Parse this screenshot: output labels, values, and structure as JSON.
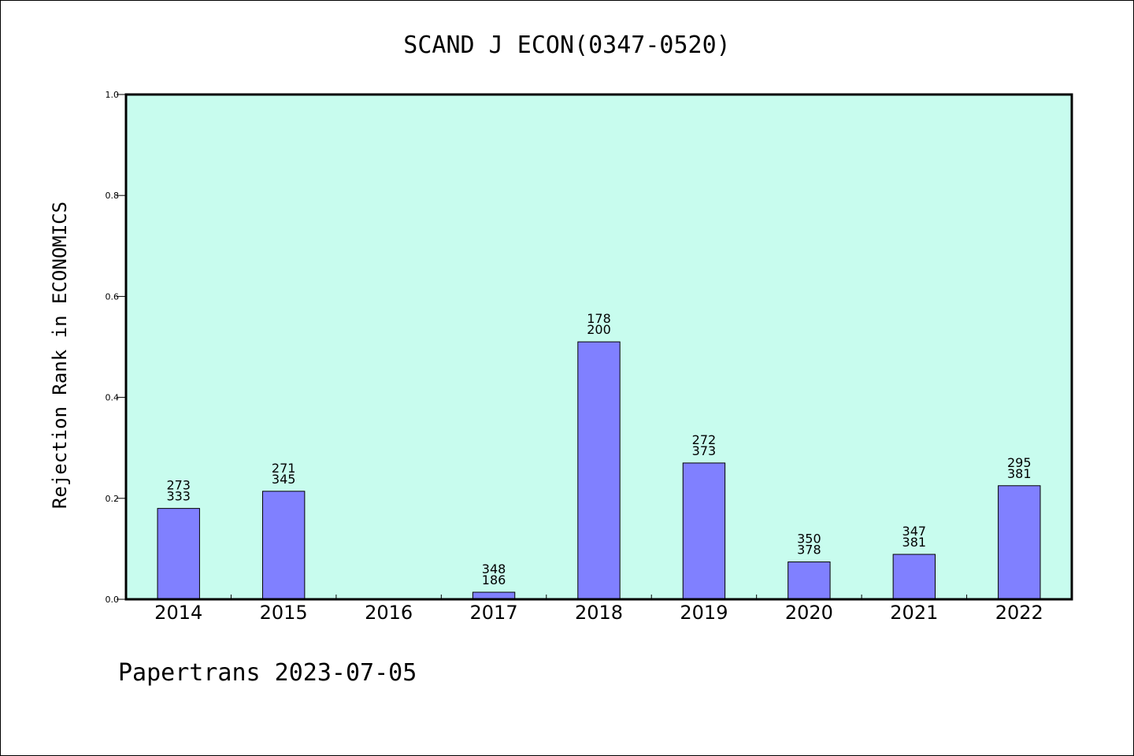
{
  "chart_data": {
    "type": "bar",
    "title": "SCAND J ECON(0347-0520)",
    "xlabel": "",
    "ylabel": "Rejection Rank in ECONOMICS",
    "ylim": [
      0,
      1.0
    ],
    "yticks": [
      "0.0",
      "0.2",
      "0.4",
      "0.6",
      "0.8",
      "1.0"
    ],
    "categories": [
      "2014",
      "2015",
      "2016",
      "2017",
      "2018",
      "2019",
      "2020",
      "2021",
      "2022"
    ],
    "values": [
      0.18,
      0.214,
      0,
      0.014,
      0.51,
      0.27,
      0.074,
      0.089,
      0.225
    ],
    "labels_top": [
      "273",
      "271",
      "",
      "348",
      "178",
      "272",
      "350",
      "347",
      "295"
    ],
    "labels_bottom": [
      "333",
      "345",
      "",
      "186",
      "200",
      "373",
      "378",
      "381",
      "381"
    ],
    "grid": false,
    "colors": {
      "background": "#c8fcee",
      "bar": "#8080ff",
      "bar_edge": "#000000"
    }
  },
  "footer": "Papertrans 2023-07-05"
}
